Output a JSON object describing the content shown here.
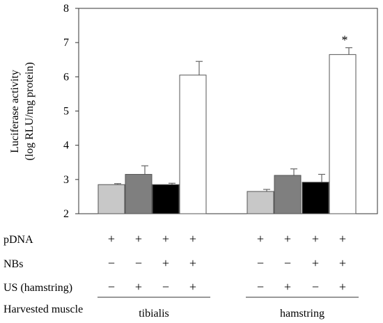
{
  "chart_data": {
    "type": "bar",
    "ylabel_line1": "Luciferase activity",
    "ylabel_line2": "(log RLU/mg protein)",
    "ylim": [
      2,
      8
    ],
    "yticks": [
      "2",
      "3",
      "4",
      "5",
      "6",
      "7",
      "8"
    ],
    "groups": [
      {
        "name": "tibialis",
        "bars": [
          {
            "value": 2.85,
            "error": 0.03,
            "color": "#c8c8c8",
            "sig": ""
          },
          {
            "value": 3.15,
            "error": 0.25,
            "color": "#7f7f7f",
            "sig": ""
          },
          {
            "value": 2.85,
            "error": 0.04,
            "color": "#000000",
            "sig": ""
          },
          {
            "value": 6.05,
            "error": 0.4,
            "color": "#ffffff",
            "sig": ""
          }
        ]
      },
      {
        "name": "hamstring",
        "bars": [
          {
            "value": 2.65,
            "error": 0.06,
            "color": "#c8c8c8",
            "sig": ""
          },
          {
            "value": 3.12,
            "error": 0.19,
            "color": "#7f7f7f",
            "sig": ""
          },
          {
            "value": 2.92,
            "error": 0.23,
            "color": "#000000",
            "sig": ""
          },
          {
            "value": 6.65,
            "error": 0.2,
            "color": "#ffffff",
            "sig": "*"
          }
        ]
      }
    ],
    "conditions": [
      {
        "label": "pDNA",
        "marks": [
          "+",
          "+",
          "+",
          "+",
          "+",
          "+",
          "+",
          "+"
        ]
      },
      {
        "label": "NBs",
        "marks": [
          "−",
          "−",
          "+",
          "+",
          "−",
          "−",
          "+",
          "+"
        ]
      },
      {
        "label": "US (hamstring)",
        "marks": [
          "−",
          "+",
          "−",
          "+",
          "−",
          "+",
          "−",
          "+"
        ]
      }
    ],
    "harvest_label": "Harvested muscle",
    "grid": false,
    "legend": "none"
  }
}
